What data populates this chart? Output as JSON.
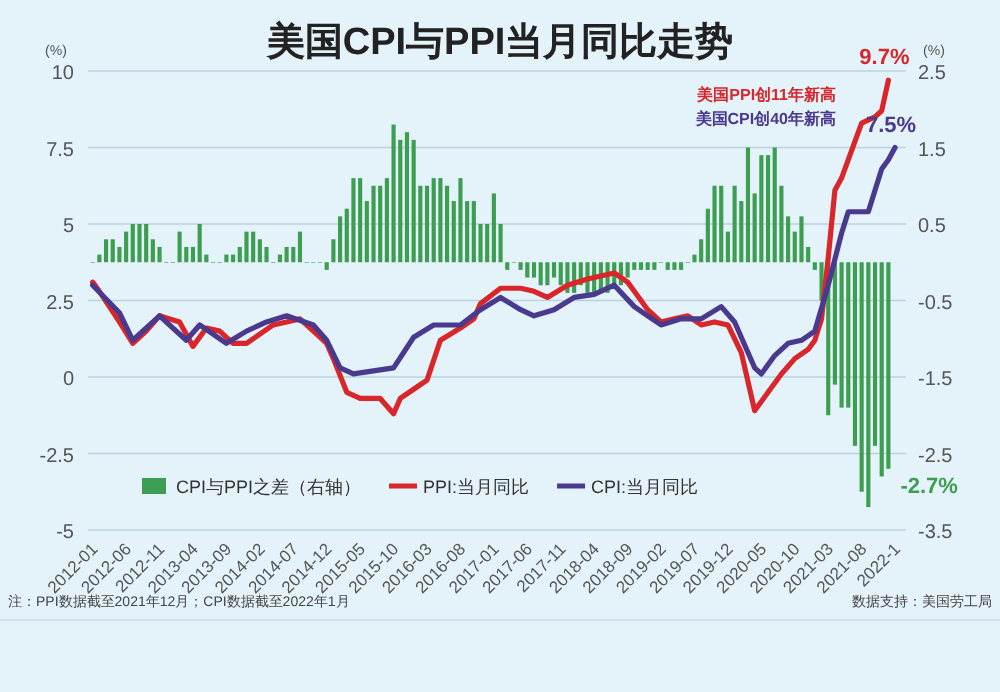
{
  "chart_data": {
    "type": "line",
    "title": "美国CPI与PPI当月同比走势",
    "ylabel": "(%)",
    "y2label": "(%)",
    "x": [
      "2012-01",
      "2012-02",
      "2012-03",
      "2012-04",
      "2012-05",
      "2012-06",
      "2012-07",
      "2012-08",
      "2012-09",
      "2012-10",
      "2012-11",
      "2012-12",
      "2013-01",
      "2013-02",
      "2013-03",
      "2013-04",
      "2013-05",
      "2013-06",
      "2013-07",
      "2013-08",
      "2013-09",
      "2013-10",
      "2013-11",
      "2013-12",
      "2014-01",
      "2014-02",
      "2014-03",
      "2014-04",
      "2014-05",
      "2014-06",
      "2014-07",
      "2014-08",
      "2014-09",
      "2014-10",
      "2014-11",
      "2014-12",
      "2015-01",
      "2015-02",
      "2015-03",
      "2015-04",
      "2015-05",
      "2015-06",
      "2015-07",
      "2015-08",
      "2015-09",
      "2015-10",
      "2015-11",
      "2015-12",
      "2016-01",
      "2016-02",
      "2016-03",
      "2016-04",
      "2016-05",
      "2016-06",
      "2016-07",
      "2016-08",
      "2016-09",
      "2016-10",
      "2016-11",
      "2016-12",
      "2017-01",
      "2017-02",
      "2017-03",
      "2017-04",
      "2017-05",
      "2017-06",
      "2017-07",
      "2017-08",
      "2017-09",
      "2017-10",
      "2017-11",
      "2017-12",
      "2018-01",
      "2018-02",
      "2018-03",
      "2018-04",
      "2018-05",
      "2018-06",
      "2018-07",
      "2018-08",
      "2018-09",
      "2018-10",
      "2018-11",
      "2018-12",
      "2019-01",
      "2019-02",
      "2019-03",
      "2019-04",
      "2019-05",
      "2019-06",
      "2019-07",
      "2019-08",
      "2019-09",
      "2019-10",
      "2019-11",
      "2019-12",
      "2020-01",
      "2020-02",
      "2020-03",
      "2020-04",
      "2020-05",
      "2020-06",
      "2020-07",
      "2020-08",
      "2020-09",
      "2020-10",
      "2020-11",
      "2020-12",
      "2021-01",
      "2021-02",
      "2021-03",
      "2021-04",
      "2021-05",
      "2021-06",
      "2021-07",
      "2021-08",
      "2021-09",
      "2021-10",
      "2021-11",
      "2021-12"
    ],
    "series": [
      {
        "name": "CPI与PPI之差（右轴）",
        "type": "bar",
        "axis": "y2",
        "color": "#3d9e52",
        "values": [
          0.0,
          0.1,
          0.3,
          0.3,
          0.2,
          0.4,
          0.5,
          0.5,
          0.5,
          0.3,
          0.2,
          0.0,
          0.0,
          0.4,
          0.2,
          0.2,
          0.5,
          0.1,
          0.0,
          0.0,
          0.1,
          0.1,
          0.2,
          0.4,
          0.4,
          0.3,
          0.2,
          0.0,
          0.1,
          0.2,
          0.2,
          0.4,
          0.0,
          0.0,
          0.0,
          -0.1,
          0.3,
          0.6,
          0.7,
          1.1,
          1.1,
          0.8,
          1.0,
          1.0,
          1.1,
          1.8,
          1.6,
          1.7,
          1.6,
          1.0,
          1.0,
          1.1,
          1.1,
          1.0,
          0.8,
          1.1,
          0.8,
          0.8,
          0.5,
          0.5,
          0.9,
          0.5,
          -0.1,
          0.0,
          -0.1,
          -0.2,
          -0.2,
          -0.3,
          -0.3,
          -0.2,
          -0.3,
          -0.4,
          -0.4,
          -0.3,
          -0.4,
          -0.4,
          -0.4,
          -0.4,
          -0.3,
          -0.3,
          -0.2,
          -0.1,
          -0.1,
          -0.1,
          -0.1,
          0.0,
          -0.1,
          -0.1,
          -0.1,
          0.0,
          0.1,
          0.3,
          0.7,
          1.0,
          1.0,
          0.4,
          1.0,
          0.8,
          1.5,
          0.9,
          1.4,
          1.4,
          1.5,
          1.0,
          0.6,
          0.4,
          0.6,
          0.2,
          -0.1,
          -0.5,
          -2.0,
          -1.6,
          -1.9,
          -1.9,
          -2.4,
          -3.0,
          -3.2,
          -2.4,
          -2.8,
          -2.7
        ]
      },
      {
        "name": "PPI:当月同比",
        "color": "#d8262b",
        "x": [
          "2012-01",
          "2012-02",
          "2012-05",
          "2012-07",
          "2012-09",
          "2012-11",
          "2013-02",
          "2013-04",
          "2013-06",
          "2013-08",
          "2013-10",
          "2013-12",
          "2014-02",
          "2014-04",
          "2014-06",
          "2014-08",
          "2014-10",
          "2014-12",
          "2015-01",
          "2015-03",
          "2015-05",
          "2015-08",
          "2015-10",
          "2015-11",
          "2016-01",
          "2016-03",
          "2016-05",
          "2016-08",
          "2016-10",
          "2016-11",
          "2017-02",
          "2017-05",
          "2017-07",
          "2017-09",
          "2017-12",
          "2018-03",
          "2018-05",
          "2018-07",
          "2018-09",
          "2018-10",
          "2018-12",
          "2019-02",
          "2019-04",
          "2019-06",
          "2019-08",
          "2019-10",
          "2019-12",
          "2020-02",
          "2020-04",
          "2020-06",
          "2020-08",
          "2020-10",
          "2020-12",
          "2021-01",
          "2021-02",
          "2021-03",
          "2021-04",
          "2021-05",
          "2021-07",
          "2021-08",
          "2021-10",
          "2021-11",
          "2021-12"
        ],
        "values": [
          3.1,
          2.8,
          1.8,
          1.1,
          1.5,
          2.0,
          1.8,
          1.0,
          1.6,
          1.5,
          1.1,
          1.1,
          1.4,
          1.7,
          1.8,
          1.9,
          1.5,
          1.1,
          0.6,
          -0.5,
          -0.7,
          -0.7,
          -1.2,
          -0.7,
          -0.4,
          -0.1,
          1.2,
          1.6,
          1.9,
          2.4,
          2.9,
          2.9,
          2.8,
          2.6,
          3.0,
          3.2,
          3.3,
          3.4,
          3.1,
          2.8,
          2.2,
          1.8,
          1.9,
          2.0,
          1.7,
          1.8,
          1.7,
          0.8,
          -1.1,
          -0.5,
          0.1,
          0.6,
          0.9,
          1.2,
          1.9,
          3.9,
          6.1,
          6.5,
          7.7,
          8.3,
          8.5,
          8.7,
          9.7
        ]
      },
      {
        "name": "CPI:当月同比",
        "color": "#4a3a8e",
        "x": [
          "2012-01",
          "2012-05",
          "2012-07",
          "2012-11",
          "2013-03",
          "2013-05",
          "2013-09",
          "2013-12",
          "2014-03",
          "2014-06",
          "2014-10",
          "2014-12",
          "2015-02",
          "2015-04",
          "2015-07",
          "2015-10",
          "2016-01",
          "2016-04",
          "2016-08",
          "2016-11",
          "2017-02",
          "2017-05",
          "2017-07",
          "2017-10",
          "2018-01",
          "2018-04",
          "2018-07",
          "2018-10",
          "2018-12",
          "2019-02",
          "2019-05",
          "2019-08",
          "2019-11",
          "2020-01",
          "2020-04",
          "2020-05",
          "2020-07",
          "2020-09",
          "2020-11",
          "2021-01",
          "2021-03",
          "2021-05",
          "2021-06",
          "2021-09",
          "2021-10",
          "2021-11",
          "2021-12",
          "2022-01"
        ],
        "values": [
          3.0,
          2.1,
          1.2,
          2.0,
          1.2,
          1.7,
          1.1,
          1.5,
          1.8,
          2.0,
          1.7,
          1.2,
          0.3,
          0.1,
          0.2,
          0.3,
          1.3,
          1.7,
          1.7,
          2.2,
          2.6,
          2.2,
          2.0,
          2.2,
          2.6,
          2.7,
          3.0,
          2.3,
          2.0,
          1.7,
          1.9,
          1.9,
          2.3,
          1.8,
          0.3,
          0.1,
          0.7,
          1.1,
          1.2,
          1.5,
          3.0,
          4.7,
          5.4,
          5.4,
          6.1,
          6.8,
          7.1,
          7.5
        ]
      }
    ],
    "xlim": [
      "2011-12-10",
      "2022-02-20"
    ],
    "xticks": [
      {
        "value": "2012-01",
        "label": "2012-01"
      },
      {
        "value": "2012-06",
        "label": "2012-06"
      },
      {
        "value": "2012-11",
        "label": "2012-11"
      },
      {
        "value": "2013-04",
        "label": "2013-04"
      },
      {
        "value": "2013-09",
        "label": "2013-09"
      },
      {
        "value": "2014-02",
        "label": "2014-02"
      },
      {
        "value": "2014-07",
        "label": "2014-07"
      },
      {
        "value": "2014-12",
        "label": "2014-12"
      },
      {
        "value": "2015-05",
        "label": "2015-05"
      },
      {
        "value": "2015-10",
        "label": "2015-10"
      },
      {
        "value": "2016-03",
        "label": "2016-03"
      },
      {
        "value": "2016-08",
        "label": "2016-08"
      },
      {
        "value": "2017-01",
        "label": "2017-01"
      },
      {
        "value": "2017-06",
        "label": "2017-06"
      },
      {
        "value": "2017-11",
        "label": "2017-11"
      },
      {
        "value": "2018-04",
        "label": "2018-04"
      },
      {
        "value": "2018-09",
        "label": "2018-09"
      },
      {
        "value": "2019-02",
        "label": "2019-02"
      },
      {
        "value": "2019-07",
        "label": "2019-07"
      },
      {
        "value": "2019-12",
        "label": "2019-12"
      },
      {
        "value": "2020-05",
        "label": "2020-05"
      },
      {
        "value": "2020-10",
        "label": "2020-10"
      },
      {
        "value": "2021-03",
        "label": "2021-03"
      },
      {
        "value": "2021-08",
        "label": "2021-08"
      },
      {
        "value": "2022-01",
        "label": "2022-1"
      }
    ],
    "ylim": [
      -5,
      10
    ],
    "yticks": [
      -5,
      -2.5,
      0,
      2.5,
      5,
      7.5,
      10
    ],
    "y2lim": [
      -3.5,
      2.5
    ],
    "y2ticks": [
      -3.5,
      -2.5,
      -1.5,
      -0.5,
      0.5,
      1.5,
      2.5
    ],
    "grid": "y",
    "legend": "bottom",
    "annotations": [
      "美国PPI创11年新高",
      "美国CPI创40年新高",
      {
        "text": "9.7%",
        "x": "2021-12",
        "y": 9.7
      },
      {
        "text": "7.5%",
        "x": "2022-01",
        "y": 7.5
      },
      {
        "text": "-2.7%",
        "x": "2021-12",
        "y": -2.7
      },
      "注：PPI数据截至2021年12月；CPI数据截至2022年1月",
      "数据支持：美国劳工局"
    ]
  }
}
